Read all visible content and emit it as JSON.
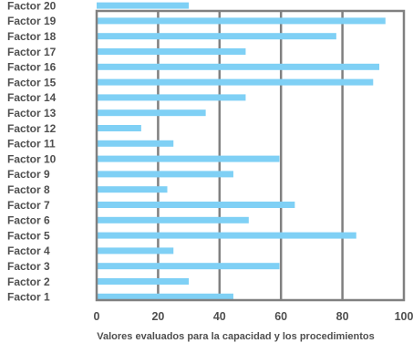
{
  "chart_data": {
    "type": "bar",
    "orientation": "horizontal",
    "categories": [
      "Factor 1",
      "Factor 2",
      "Factor 3",
      "Factor 4",
      "Factor 5",
      "Factor 6",
      "Factor 7",
      "Factor 8",
      "Factor 9",
      "Factor 10",
      "Factor 11",
      "Factor 12",
      "Factor 13",
      "Factor 14",
      "Factor 15",
      "Factor 16",
      "Factor 17",
      "Factor 18",
      "Factor 19",
      "Factor 20"
    ],
    "values": [
      44.5,
      30,
      59.5,
      25,
      84.5,
      49.5,
      64.5,
      23,
      44.5,
      59.5,
      25,
      14.5,
      35.5,
      48.5,
      90,
      92,
      48.5,
      78,
      94,
      30
    ],
    "title": "",
    "xlabel": "Valores evaluados para la capacidad y los procedimientos",
    "ylabel": "",
    "xlim": [
      0,
      100
    ],
    "xticks": [
      "0",
      "20",
      "40",
      "60",
      "80",
      "100"
    ],
    "grid": "vertical",
    "bar_color": "#7fd0f5",
    "grid_color": "#808080",
    "frame_color": "#808080"
  }
}
